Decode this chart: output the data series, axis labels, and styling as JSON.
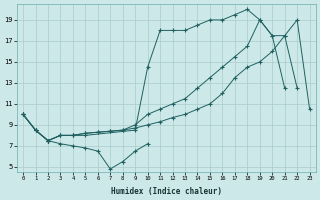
{
  "xlabel": "Humidex (Indice chaleur)",
  "background_color": "#cce8e8",
  "grid_color": "#aacccc",
  "line_color": "#206060",
  "xlim": [
    -0.5,
    23.5
  ],
  "ylim": [
    4.5,
    20.5
  ],
  "xticks": [
    0,
    1,
    2,
    3,
    4,
    5,
    6,
    7,
    8,
    9,
    10,
    11,
    12,
    13,
    14,
    15,
    16,
    17,
    18,
    19,
    20,
    21,
    22,
    23
  ],
  "yticks": [
    5,
    7,
    9,
    11,
    13,
    15,
    17,
    19
  ],
  "series": [
    {
      "x": [
        0,
        1,
        2,
        3,
        4,
        5,
        6,
        7,
        8,
        9,
        10
      ],
      "y": [
        10,
        8.5,
        7.5,
        7.2,
        7.0,
        6.8,
        6.5,
        4.8,
        5.5,
        6.5,
        7.2
      ]
    },
    {
      "x": [
        0,
        1,
        2,
        3,
        4,
        5,
        9,
        10,
        11,
        12,
        13,
        14,
        15,
        16,
        17,
        18,
        19,
        20,
        21
      ],
      "y": [
        10,
        8.5,
        7.5,
        8.0,
        8.0,
        8.0,
        8.5,
        14.5,
        18.0,
        18.0,
        18.0,
        18.5,
        19.0,
        19.0,
        19.5,
        20.0,
        19.0,
        17.5,
        12.5
      ]
    },
    {
      "x": [
        0,
        1,
        2,
        3,
        4,
        5,
        6,
        7,
        8,
        9,
        10,
        11,
        12,
        13,
        14,
        15,
        16,
        17,
        18,
        19,
        20,
        21,
        22,
        23
      ],
      "y": [
        10,
        8.5,
        7.5,
        8.0,
        8.0,
        8.2,
        8.3,
        8.4,
        8.5,
        8.7,
        9.0,
        9.3,
        9.7,
        10.0,
        10.5,
        11.0,
        12.0,
        13.5,
        14.5,
        15.0,
        16.0,
        17.5,
        19.0,
        10.5
      ]
    },
    {
      "x": [
        0,
        1,
        2,
        3,
        4,
        5,
        6,
        7,
        8,
        9,
        10,
        11,
        12,
        13,
        14,
        15,
        16,
        17,
        18,
        19,
        20,
        21,
        22
      ],
      "y": [
        10,
        8.5,
        7.5,
        8.0,
        8.0,
        8.2,
        8.3,
        8.4,
        8.5,
        9.0,
        10.0,
        10.5,
        11.0,
        11.5,
        12.5,
        13.5,
        14.5,
        15.5,
        16.5,
        19.0,
        17.5,
        17.5,
        12.5
      ]
    }
  ]
}
